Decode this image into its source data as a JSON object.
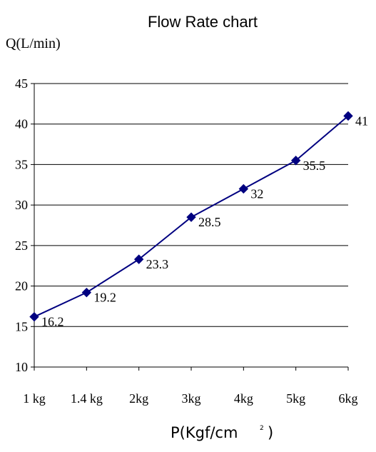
{
  "chart_data": {
    "type": "line",
    "title": "Flow Rate chart",
    "ylabel": "Q(L/min)",
    "xlabel": "P(Kgf/cm",
    "xlabel_superscript": "2",
    "xlabel_suffix": ")",
    "categories": [
      "1 kg",
      "1.4 kg",
      "2kg",
      "3kg",
      "4kg",
      "5kg",
      "6kg"
    ],
    "series": [
      {
        "values": [
          16.2,
          19.2,
          23.3,
          28.5,
          32,
          35.5,
          41
        ]
      }
    ],
    "data_labels": [
      "16.2",
      "19.2",
      "23.3",
      "28.5",
      "32",
      "35.5",
      "41"
    ],
    "ylim": [
      10,
      45
    ],
    "yticks": [
      10,
      15,
      20,
      25,
      30,
      35,
      40,
      45
    ],
    "grid": "horizontal",
    "legend": "none",
    "colors": {
      "line": "#000080",
      "marker": "#000080",
      "grid": "#000000",
      "axis": "#000000"
    }
  }
}
